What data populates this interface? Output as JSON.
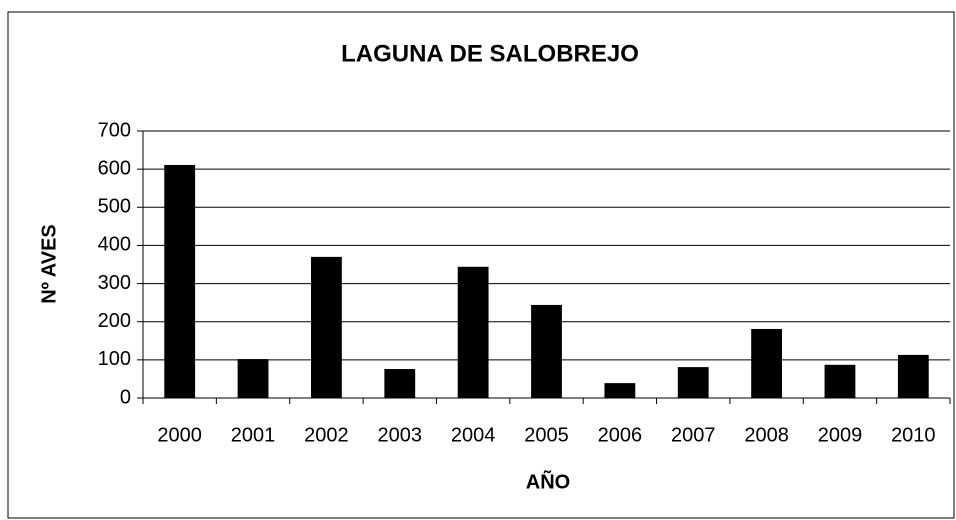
{
  "chart_data": {
    "type": "bar",
    "title": "LAGUNA DE SALOBREJO",
    "x_label": "AÑO",
    "y_label": "Nº AVES",
    "categories": [
      "2000",
      "2001",
      "2002",
      "2003",
      "2004",
      "2005",
      "2006",
      "2007",
      "2008",
      "2009",
      "2010"
    ],
    "values": [
      611,
      102,
      370,
      76,
      344,
      244,
      39,
      81,
      181,
      87,
      113
    ],
    "color": "#000000",
    "ylim": [
      0,
      700
    ],
    "yticks": [
      0,
      100,
      200,
      300,
      400,
      500,
      600,
      700
    ],
    "grid": true
  }
}
